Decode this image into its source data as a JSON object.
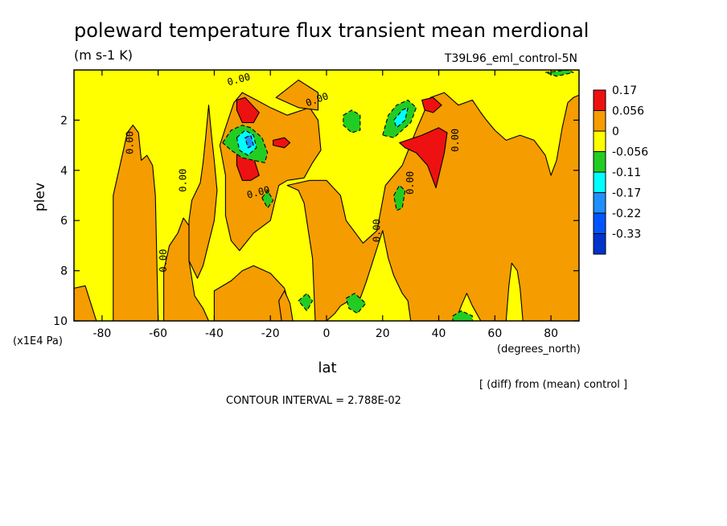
{
  "chart_data": {
    "type": "heatmap",
    "title": "poleward temperature flux transient mean merdional",
    "units": "(m s-1 K)",
    "run_label": "T39L96_eml_control-5N",
    "xlabel": "lat",
    "x_units": "(degrees_north)",
    "ylabel": "plev",
    "y_units": "(x1E4 Pa)",
    "xlim": [
      -90,
      90
    ],
    "ylim": [
      10,
      0
    ],
    "x_ticks": [
      -80,
      -60,
      -40,
      -20,
      0,
      20,
      40,
      60,
      80
    ],
    "x_tick_labels": [
      "-80",
      "-60",
      "-40",
      "-20",
      "0",
      "20",
      "40",
      "60",
      "80"
    ],
    "y_ticks": [
      2,
      4,
      6,
      8,
      10
    ],
    "y_tick_labels": [
      "2",
      "4",
      "6",
      "8",
      "10"
    ],
    "diff_note": "[ (diff) from (mean) control ]",
    "contour_interval": "CONTOUR INTERVAL = 2.788E-02",
    "contour_label": "0.00",
    "legend": {
      "placement": "right",
      "labels": [
        "0.17",
        "0.056",
        "0",
        "-0.056",
        "-0.11",
        "-0.17",
        "-0.22",
        "-0.33"
      ],
      "colors": [
        "#ee1111",
        "#f59c00",
        "#ffff00",
        "#22cc22",
        "#00ffff",
        "#1e90ff",
        "#0055ff",
        "#0033cc"
      ]
    },
    "base_color": "#ffff00",
    "regions": [
      {
        "level": "positive",
        "color": "#f59c00",
        "poly": [
          [
            -90,
            8.7
          ],
          [
            -86,
            8.6
          ],
          [
            -84,
            9.3
          ],
          [
            -82,
            10
          ],
          [
            -90,
            10
          ]
        ]
      },
      {
        "level": "positive",
        "color": "#f59c00",
        "poly": [
          [
            -76,
            10
          ],
          [
            -76,
            5
          ],
          [
            -73,
            3.5
          ],
          [
            -71,
            2.5
          ],
          [
            -69,
            2.2
          ],
          [
            -67,
            2.5
          ],
          [
            -66,
            3.6
          ],
          [
            -64,
            3.4
          ],
          [
            -62,
            3.8
          ],
          [
            -61,
            5
          ],
          [
            -60,
            10
          ]
        ]
      },
      {
        "level": "positive",
        "color": "#f59c00",
        "poly": [
          [
            -58,
            10
          ],
          [
            -58,
            8
          ],
          [
            -56,
            7
          ],
          [
            -53,
            6.5
          ],
          [
            -51,
            5.9
          ],
          [
            -49,
            6.2
          ],
          [
            -49,
            7.6
          ],
          [
            -47,
            9
          ],
          [
            -44,
            9.5
          ],
          [
            -42,
            10
          ]
        ]
      },
      {
        "level": "positive",
        "color": "#f59c00",
        "poly": [
          [
            -48,
            5.2
          ],
          [
            -45,
            4.5
          ],
          [
            -44,
            3.7
          ],
          [
            -43,
            2.6
          ],
          [
            -42,
            1.4
          ],
          [
            -41,
            2.6
          ],
          [
            -40,
            3.6
          ],
          [
            -39,
            4.8
          ],
          [
            -40,
            6
          ],
          [
            -44,
            7.8
          ],
          [
            -46,
            8.3
          ],
          [
            -49,
            7.6
          ],
          [
            -49,
            6
          ]
        ]
      },
      {
        "level": "positive",
        "color": "#f59c00",
        "poly": [
          [
            -36,
            4.2
          ],
          [
            -38,
            3
          ],
          [
            -36,
            2.3
          ],
          [
            -33,
            1.3
          ],
          [
            -30,
            0.9
          ],
          [
            -25,
            1.2
          ],
          [
            -20,
            1.5
          ],
          [
            -14,
            1.8
          ],
          [
            -6,
            1.5
          ],
          [
            -3,
            2
          ],
          [
            -2,
            3.2
          ],
          [
            -5,
            3.7
          ],
          [
            -8,
            4.3
          ],
          [
            -14,
            4.4
          ],
          [
            -17,
            4.6
          ],
          [
            -20,
            6
          ],
          [
            -26,
            6.5
          ],
          [
            -31,
            7.2
          ],
          [
            -34,
            6.8
          ],
          [
            -36,
            5.8
          ]
        ]
      },
      {
        "level": "positive",
        "color": "#f59c00",
        "poly": [
          [
            -18,
            1.1
          ],
          [
            -10,
            0.4
          ],
          [
            -3,
            0.9
          ],
          [
            -3,
            1.6
          ],
          [
            -10,
            1.5
          ]
        ]
      },
      {
        "level": "positive",
        "color": "#f59c00",
        "poly": [
          [
            -4,
            10
          ],
          [
            -5,
            7.5
          ],
          [
            -8,
            5.3
          ],
          [
            -10,
            4.8
          ],
          [
            -14,
            4.6
          ],
          [
            -6,
            4.4
          ],
          [
            0,
            4.4
          ],
          [
            5,
            5
          ],
          [
            7,
            6
          ],
          [
            13,
            6.9
          ],
          [
            18,
            6.4
          ],
          [
            21,
            4.6
          ],
          [
            27,
            3.8
          ],
          [
            32,
            2.4
          ],
          [
            37,
            1.1
          ],
          [
            42,
            0.9
          ],
          [
            47,
            1.4
          ],
          [
            52,
            1.2
          ],
          [
            55,
            1.7
          ],
          [
            57,
            2
          ],
          [
            60,
            2.4
          ],
          [
            64,
            2.8
          ],
          [
            69,
            2.6
          ],
          [
            74,
            2.8
          ],
          [
            78,
            3.4
          ],
          [
            80,
            4.2
          ],
          [
            82,
            3.6
          ],
          [
            84,
            2.3
          ],
          [
            86,
            1.3
          ],
          [
            88,
            1.1
          ],
          [
            90,
            1
          ],
          [
            90,
            10
          ],
          [
            70,
            10
          ],
          [
            69,
            8.7
          ],
          [
            68,
            8
          ],
          [
            66,
            7.7
          ],
          [
            65,
            8.6
          ],
          [
            64,
            10
          ],
          [
            55,
            10
          ],
          [
            52,
            9.4
          ],
          [
            50,
            8.9
          ],
          [
            48,
            9.4
          ],
          [
            46,
            10
          ],
          [
            30,
            10
          ],
          [
            29,
            9.2
          ],
          [
            27,
            8.9
          ],
          [
            24,
            8.2
          ],
          [
            22,
            7.5
          ],
          [
            20,
            6.4
          ],
          [
            18,
            7.1
          ],
          [
            16,
            7.8
          ],
          [
            14,
            8.5
          ],
          [
            12,
            9.1
          ],
          [
            8,
            9.2
          ],
          [
            5,
            9.4
          ],
          [
            3,
            9.7
          ],
          [
            0,
            10
          ]
        ]
      },
      {
        "level": "positive",
        "color": "#f59c00",
        "poly": [
          [
            -40,
            8.8
          ],
          [
            -34,
            8.4
          ],
          [
            -30,
            8
          ],
          [
            -26,
            7.8
          ],
          [
            -20,
            8.1
          ],
          [
            -15,
            8.7
          ],
          [
            -13,
            9.5
          ],
          [
            -14,
            10
          ],
          [
            -40,
            10
          ]
        ]
      },
      {
        "level": "positive",
        "color": "#f59c00",
        "poly": [
          [
            -16,
            10
          ],
          [
            -17,
            9.2
          ],
          [
            -15,
            8.8
          ],
          [
            -13,
            9.3
          ],
          [
            -12,
            10
          ]
        ]
      },
      {
        "level": "strong",
        "color": "#ee1111",
        "poly": [
          [
            -32,
            1.2
          ],
          [
            -29,
            1.1
          ],
          [
            -24,
            1.7
          ],
          [
            -26,
            2.1
          ],
          [
            -30,
            2.1
          ],
          [
            -32,
            1.6
          ]
        ]
      },
      {
        "level": "strong",
        "color": "#ee1111",
        "poly": [
          [
            -32,
            3.1
          ],
          [
            -29,
            2.9
          ],
          [
            -26,
            3.5
          ],
          [
            -24,
            4.2
          ],
          [
            -27,
            4.4
          ],
          [
            -30,
            4.4
          ],
          [
            -32,
            3.8
          ]
        ]
      },
      {
        "level": "strong",
        "color": "#ee1111",
        "poly": [
          [
            -19,
            2.8
          ],
          [
            -15,
            2.7
          ],
          [
            -13,
            2.9
          ],
          [
            -15,
            3.1
          ],
          [
            -19,
            3
          ]
        ]
      },
      {
        "level": "strong",
        "color": "#ee1111",
        "poly": [
          [
            34,
            1.2
          ],
          [
            38,
            1.1
          ],
          [
            41,
            1.4
          ],
          [
            38,
            1.7
          ],
          [
            35,
            1.6
          ]
        ]
      },
      {
        "level": "strong",
        "color": "#ee1111",
        "poly": [
          [
            26,
            2.9
          ],
          [
            34,
            2.6
          ],
          [
            40,
            2.3
          ],
          [
            43,
            2.5
          ],
          [
            42,
            3.3
          ],
          [
            39,
            4.7
          ],
          [
            36,
            3.8
          ],
          [
            32,
            3.3
          ],
          [
            28,
            3.1
          ]
        ]
      },
      {
        "level": "negative",
        "color": "#22cc22",
        "poly": [
          [
            -37,
            2.9
          ],
          [
            -34,
            2.4
          ],
          [
            -30,
            2.2
          ],
          [
            -27,
            2.3
          ],
          [
            -23,
            2.7
          ],
          [
            -21,
            3.3
          ],
          [
            -22,
            3.7
          ],
          [
            -26,
            3.6
          ],
          [
            -30,
            3.5
          ],
          [
            -34,
            3.2
          ]
        ]
      },
      {
        "level": "negative",
        "color": "#22cc22",
        "poly": [
          [
            6,
            1.8
          ],
          [
            9,
            1.6
          ],
          [
            12,
            1.8
          ],
          [
            12,
            2.4
          ],
          [
            9,
            2.5
          ],
          [
            6,
            2.2
          ]
        ]
      },
      {
        "level": "negative",
        "color": "#22cc22",
        "poly": [
          [
            20,
            2.6
          ],
          [
            22,
            1.8
          ],
          [
            25,
            1.4
          ],
          [
            29,
            1.2
          ],
          [
            32,
            1.5
          ],
          [
            30,
            2.1
          ],
          [
            27,
            2.4
          ],
          [
            24,
            2.7
          ]
        ]
      },
      {
        "level": "negative",
        "color": "#22cc22",
        "poly": [
          [
            -23,
            5.1
          ],
          [
            -21,
            4.8
          ],
          [
            -19,
            5.2
          ],
          [
            -21,
            5.5
          ]
        ]
      },
      {
        "level": "negative",
        "color": "#22cc22",
        "poly": [
          [
            24,
            5
          ],
          [
            26,
            4.6
          ],
          [
            28,
            4.8
          ],
          [
            27,
            5.5
          ],
          [
            25,
            5.6
          ]
        ]
      },
      {
        "level": "negative",
        "color": "#22cc22",
        "poly": [
          [
            -10,
            9.2
          ],
          [
            -7,
            8.9
          ],
          [
            -5,
            9.2
          ],
          [
            -7,
            9.6
          ]
        ]
      },
      {
        "level": "negative",
        "color": "#22cc22",
        "poly": [
          [
            7,
            9.1
          ],
          [
            10,
            8.9
          ],
          [
            14,
            9.3
          ],
          [
            11,
            9.7
          ],
          [
            8,
            9.5
          ]
        ]
      },
      {
        "level": "negative",
        "color": "#22cc22",
        "poly": [
          [
            45,
            9.8
          ],
          [
            48,
            9.6
          ],
          [
            52,
            9.8
          ],
          [
            52,
            10
          ],
          [
            45,
            10
          ]
        ]
      },
      {
        "level": "negative",
        "color": "#22cc22",
        "poly": [
          [
            78,
            0.1
          ],
          [
            86,
            0
          ],
          [
            88,
            0.1
          ],
          [
            82,
            0.25
          ]
        ]
      },
      {
        "level": "weak-negative",
        "color": "#00ffff",
        "poly": [
          [
            -32,
            2.7
          ],
          [
            -29,
            2.4
          ],
          [
            -26,
            2.6
          ],
          [
            -25,
            3.1
          ],
          [
            -28,
            3.4
          ],
          [
            -31,
            3.2
          ]
        ]
      },
      {
        "level": "weak-negative",
        "color": "#00ffff",
        "poly": [
          [
            24,
            2
          ],
          [
            27,
            1.6
          ],
          [
            29,
            1.5
          ],
          [
            28,
            2
          ],
          [
            25,
            2.3
          ]
        ]
      },
      {
        "level": "mid-negative",
        "color": "#1e90ff",
        "poly": [
          [
            -29,
            2.7
          ],
          [
            -27,
            2.6
          ],
          [
            -26,
            3
          ],
          [
            -28,
            3.1
          ]
        ]
      }
    ]
  }
}
